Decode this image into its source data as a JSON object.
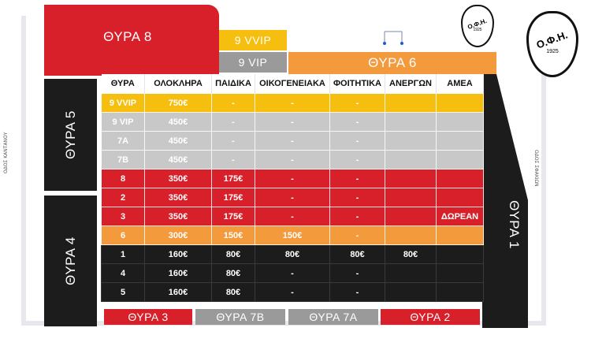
{
  "gates": {
    "g8": "ΘΥΡΑ 8",
    "vvip": "9 VVIP",
    "vip": "9 VIP",
    "g6": "ΘΥΡΑ 6",
    "g5": "ΘΥΡΑ 5",
    "g4": "ΘΥΡΑ 4",
    "g1": "ΘΥΡΑ 1",
    "g3": "ΘΥΡΑ 3",
    "g7b": "ΘΥΡΑ 7Β",
    "g7a": "ΘΥΡΑ 7Α",
    "g2": "ΘΥΡΑ 2"
  },
  "streets": {
    "left": "ΟΔΟΣ ΚΑΝΤΑΝΟΥ",
    "right": "ΟΔΟΣ ΣΦΑΚΙΩΝ"
  },
  "logo": {
    "text": "Ο.Φ.Η.",
    "year": "1925"
  },
  "colors": {
    "red": "#d7202a",
    "yellow": "#f6bf0f",
    "grey": "#9a9a9a",
    "orange": "#f39a3c",
    "black": "#1c1c1c"
  },
  "table": {
    "headers": [
      "ΘΥΡΑ",
      "ΟΛΟΚΛΗΡΑ",
      "ΠΑΙΔΙΚΑ",
      "ΟΙΚΟΓΕΝΕΙΑΚΑ",
      "ΦΟΙΤΗΤΙΚΑ",
      "ΑΝΕΡΓΩΝ",
      "ΑΜΕΑ"
    ],
    "rows": [
      {
        "style": "vvip",
        "cells": [
          "9 VVIP",
          "750€",
          "-",
          "-",
          "-",
          "",
          ""
        ]
      },
      {
        "style": "vip",
        "cells": [
          "9 VIP",
          "450€",
          "-",
          "-",
          "-",
          "",
          ""
        ]
      },
      {
        "style": "vip",
        "cells": [
          "7Α",
          "450€",
          "-",
          "-",
          "-",
          "",
          ""
        ]
      },
      {
        "style": "vip",
        "cells": [
          "7Β",
          "450€",
          "-",
          "-",
          "-",
          "",
          ""
        ]
      },
      {
        "style": "red",
        "cells": [
          "8",
          "350€",
          "175€",
          "-",
          "-",
          "",
          ""
        ]
      },
      {
        "style": "red",
        "cells": [
          "2",
          "350€",
          "175€",
          "-",
          "-",
          "",
          ""
        ]
      },
      {
        "style": "red",
        "cells": [
          "3",
          "350€",
          "175€",
          "-",
          "-",
          "",
          "ΔΩΡΕΑΝ"
        ]
      },
      {
        "style": "orange",
        "cells": [
          "6",
          "300€",
          "150€",
          "150€",
          "-",
          "",
          ""
        ]
      },
      {
        "style": "black",
        "cells": [
          "1",
          "160€",
          "80€",
          "80€",
          "80€",
          "80€",
          ""
        ]
      },
      {
        "style": "black",
        "cells": [
          "4",
          "160€",
          "80€",
          "-",
          "-",
          "",
          ""
        ]
      },
      {
        "style": "black",
        "cells": [
          "5",
          "160€",
          "80€",
          "-",
          "-",
          "",
          ""
        ]
      }
    ]
  }
}
